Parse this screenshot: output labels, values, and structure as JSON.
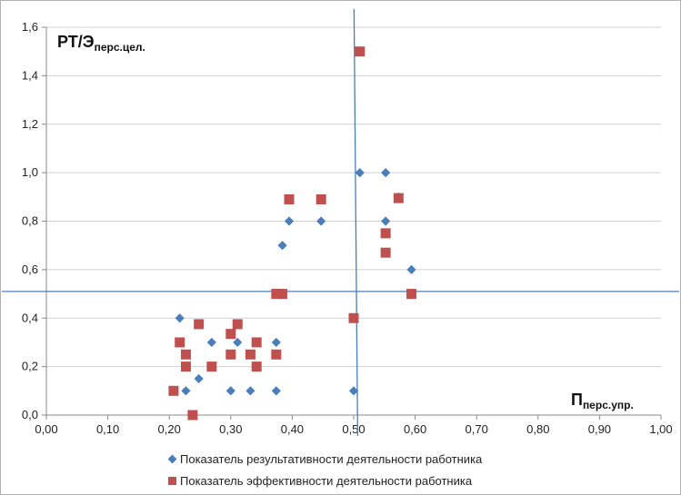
{
  "chart_data": {
    "type": "scatter",
    "xlim": [
      0,
      1
    ],
    "ylim": [
      0,
      1.6
    ],
    "x_ticks": [
      "0,00",
      "0,10",
      "0,20",
      "0,30",
      "0,40",
      "0,50",
      "0,60",
      "0,70",
      "0,80",
      "0,90",
      "1,00"
    ],
    "y_ticks": [
      "0,0",
      "0,2",
      "0,4",
      "0,6",
      "0,8",
      "1,0",
      "1,2",
      "1,4",
      "1,6"
    ],
    "y_axis_label": {
      "main": "РТ/Э",
      "sub": "перс.цел."
    },
    "x_axis_label": {
      "main": "П",
      "sub": "перс.упр."
    },
    "grid": "horizontal",
    "legend_position": "bottom",
    "reference_lines": {
      "vertical_x": 0.505,
      "horizontal_y": 0.51
    },
    "series": [
      {
        "name": "Показатель результативности деятельности работника",
        "marker": "diamond",
        "color": "#4a7ebb",
        "points": [
          [
            0.217,
            0.4
          ],
          [
            0.227,
            0.1
          ],
          [
            0.248,
            0.15
          ],
          [
            0.269,
            0.3
          ],
          [
            0.3,
            0.1
          ],
          [
            0.311,
            0.3
          ],
          [
            0.332,
            0.1
          ],
          [
            0.374,
            0.1
          ],
          [
            0.374,
            0.3
          ],
          [
            0.384,
            0.7
          ],
          [
            0.395,
            0.8
          ],
          [
            0.447,
            0.8
          ],
          [
            0.5,
            0.1
          ],
          [
            0.51,
            1.0
          ],
          [
            0.552,
            1.0
          ],
          [
            0.552,
            0.8
          ],
          [
            0.573,
            0.9
          ],
          [
            0.594,
            0.6
          ]
        ]
      },
      {
        "name": "Показатель эффективности деятельности работника",
        "marker": "square",
        "color": "#c0504d",
        "points": [
          [
            0.207,
            0.1
          ],
          [
            0.217,
            0.3
          ],
          [
            0.227,
            0.25
          ],
          [
            0.227,
            0.2
          ],
          [
            0.238,
            0.0
          ],
          [
            0.248,
            0.375
          ],
          [
            0.269,
            0.2
          ],
          [
            0.3,
            0.335
          ],
          [
            0.3,
            0.25
          ],
          [
            0.311,
            0.375
          ],
          [
            0.332,
            0.25
          ],
          [
            0.342,
            0.3
          ],
          [
            0.342,
            0.2
          ],
          [
            0.374,
            0.25
          ],
          [
            0.374,
            0.5
          ],
          [
            0.384,
            0.5
          ],
          [
            0.395,
            0.89
          ],
          [
            0.447,
            0.89
          ],
          [
            0.5,
            0.4
          ],
          [
            0.51,
            1.5
          ],
          [
            0.552,
            0.75
          ],
          [
            0.552,
            0.67
          ],
          [
            0.573,
            0.895
          ],
          [
            0.594,
            0.5
          ]
        ]
      }
    ]
  }
}
